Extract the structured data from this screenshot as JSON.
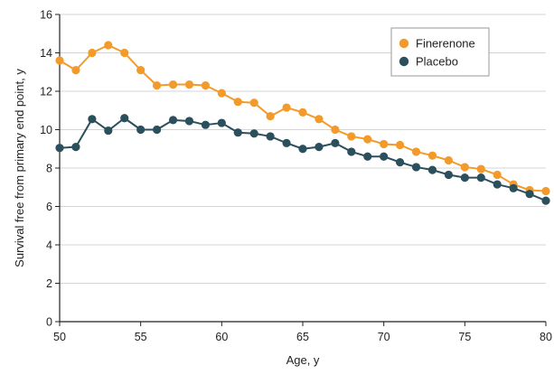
{
  "chart_data": {
    "type": "line",
    "xlabel": "Age, y",
    "ylabel": "Survival free from primary end point, y",
    "xlim": [
      50,
      80
    ],
    "ylim": [
      0,
      16
    ],
    "xticks": [
      50,
      55,
      60,
      65,
      70,
      75,
      80
    ],
    "yticks": [
      0,
      2,
      4,
      6,
      8,
      10,
      12,
      14,
      16
    ],
    "grid": "horizontal",
    "legend_position": "top-right",
    "x": [
      50,
      51,
      52,
      53,
      54,
      55,
      56,
      57,
      58,
      59,
      60,
      61,
      62,
      63,
      64,
      65,
      66,
      67,
      68,
      69,
      70,
      71,
      72,
      73,
      74,
      75,
      76,
      77,
      78,
      79,
      80
    ],
    "series": [
      {
        "name": "Finerenone",
        "color": "#f39a2b",
        "values": [
          13.6,
          13.1,
          14.0,
          14.4,
          14.0,
          13.1,
          12.3,
          12.35,
          12.35,
          12.3,
          11.9,
          11.45,
          11.4,
          10.7,
          11.15,
          10.9,
          10.55,
          10.0,
          9.65,
          9.5,
          9.25,
          9.2,
          8.85,
          8.65,
          8.4,
          8.05,
          7.95,
          7.65,
          7.15,
          6.85,
          6.8
        ]
      },
      {
        "name": "Placebo",
        "color": "#2b4f5c",
        "values": [
          9.05,
          9.1,
          10.55,
          9.95,
          10.6,
          10.0,
          10.0,
          10.5,
          10.45,
          10.25,
          10.35,
          9.85,
          9.8,
          9.65,
          9.3,
          9.0,
          9.1,
          9.3,
          8.85,
          8.6,
          8.6,
          8.3,
          8.05,
          7.9,
          7.65,
          7.5,
          7.5,
          7.15,
          6.95,
          6.65,
          6.3
        ]
      }
    ]
  }
}
